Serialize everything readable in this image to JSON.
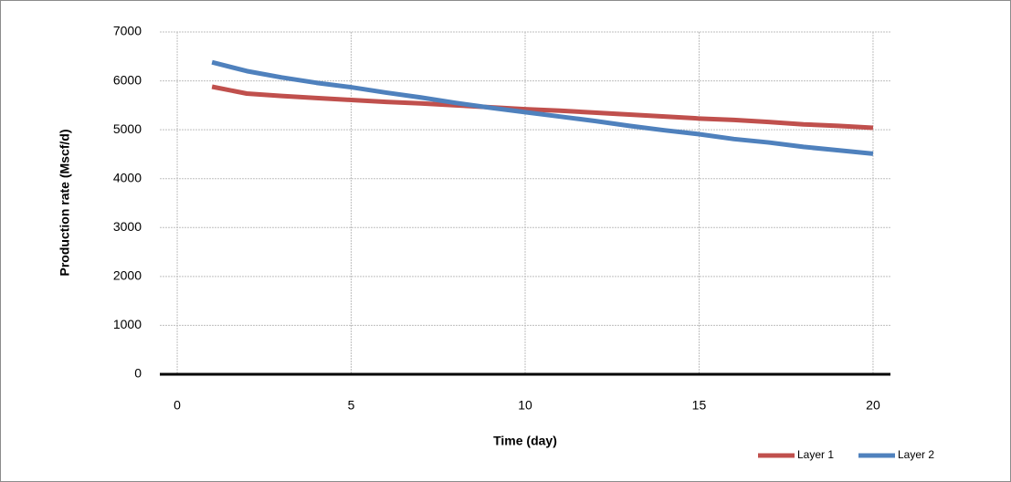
{
  "chart_data": {
    "type": "line",
    "x_label": "Time (day)",
    "y_label": "Production rate (Mscf/d)",
    "x": [
      1,
      2,
      3,
      4,
      5,
      6,
      7,
      8,
      9,
      10,
      11,
      12,
      13,
      14,
      15,
      16,
      17,
      18,
      19,
      20
    ],
    "series": [
      {
        "name": "Layer 1",
        "color": "#c0504d",
        "values": [
          5880,
          5740,
          5690,
          5650,
          5610,
          5570,
          5540,
          5500,
          5460,
          5420,
          5390,
          5350,
          5310,
          5270,
          5230,
          5200,
          5160,
          5110,
          5080,
          5040
        ]
      },
      {
        "name": "Layer 2",
        "color": "#4f81bd",
        "values": [
          6380,
          6200,
          6070,
          5960,
          5870,
          5760,
          5660,
          5550,
          5450,
          5360,
          5270,
          5180,
          5080,
          4990,
          4910,
          4810,
          4740,
          4650,
          4580,
          4510
        ]
      }
    ],
    "xlim": [
      -0.5,
      20.5
    ],
    "xticks": [
      0,
      5,
      10,
      15,
      20
    ],
    "ylim": [
      0,
      7000
    ],
    "yticks": [
      0,
      1000,
      2000,
      3000,
      4000,
      5000,
      6000,
      7000
    ],
    "grid": true,
    "legend": "bottom-right"
  }
}
